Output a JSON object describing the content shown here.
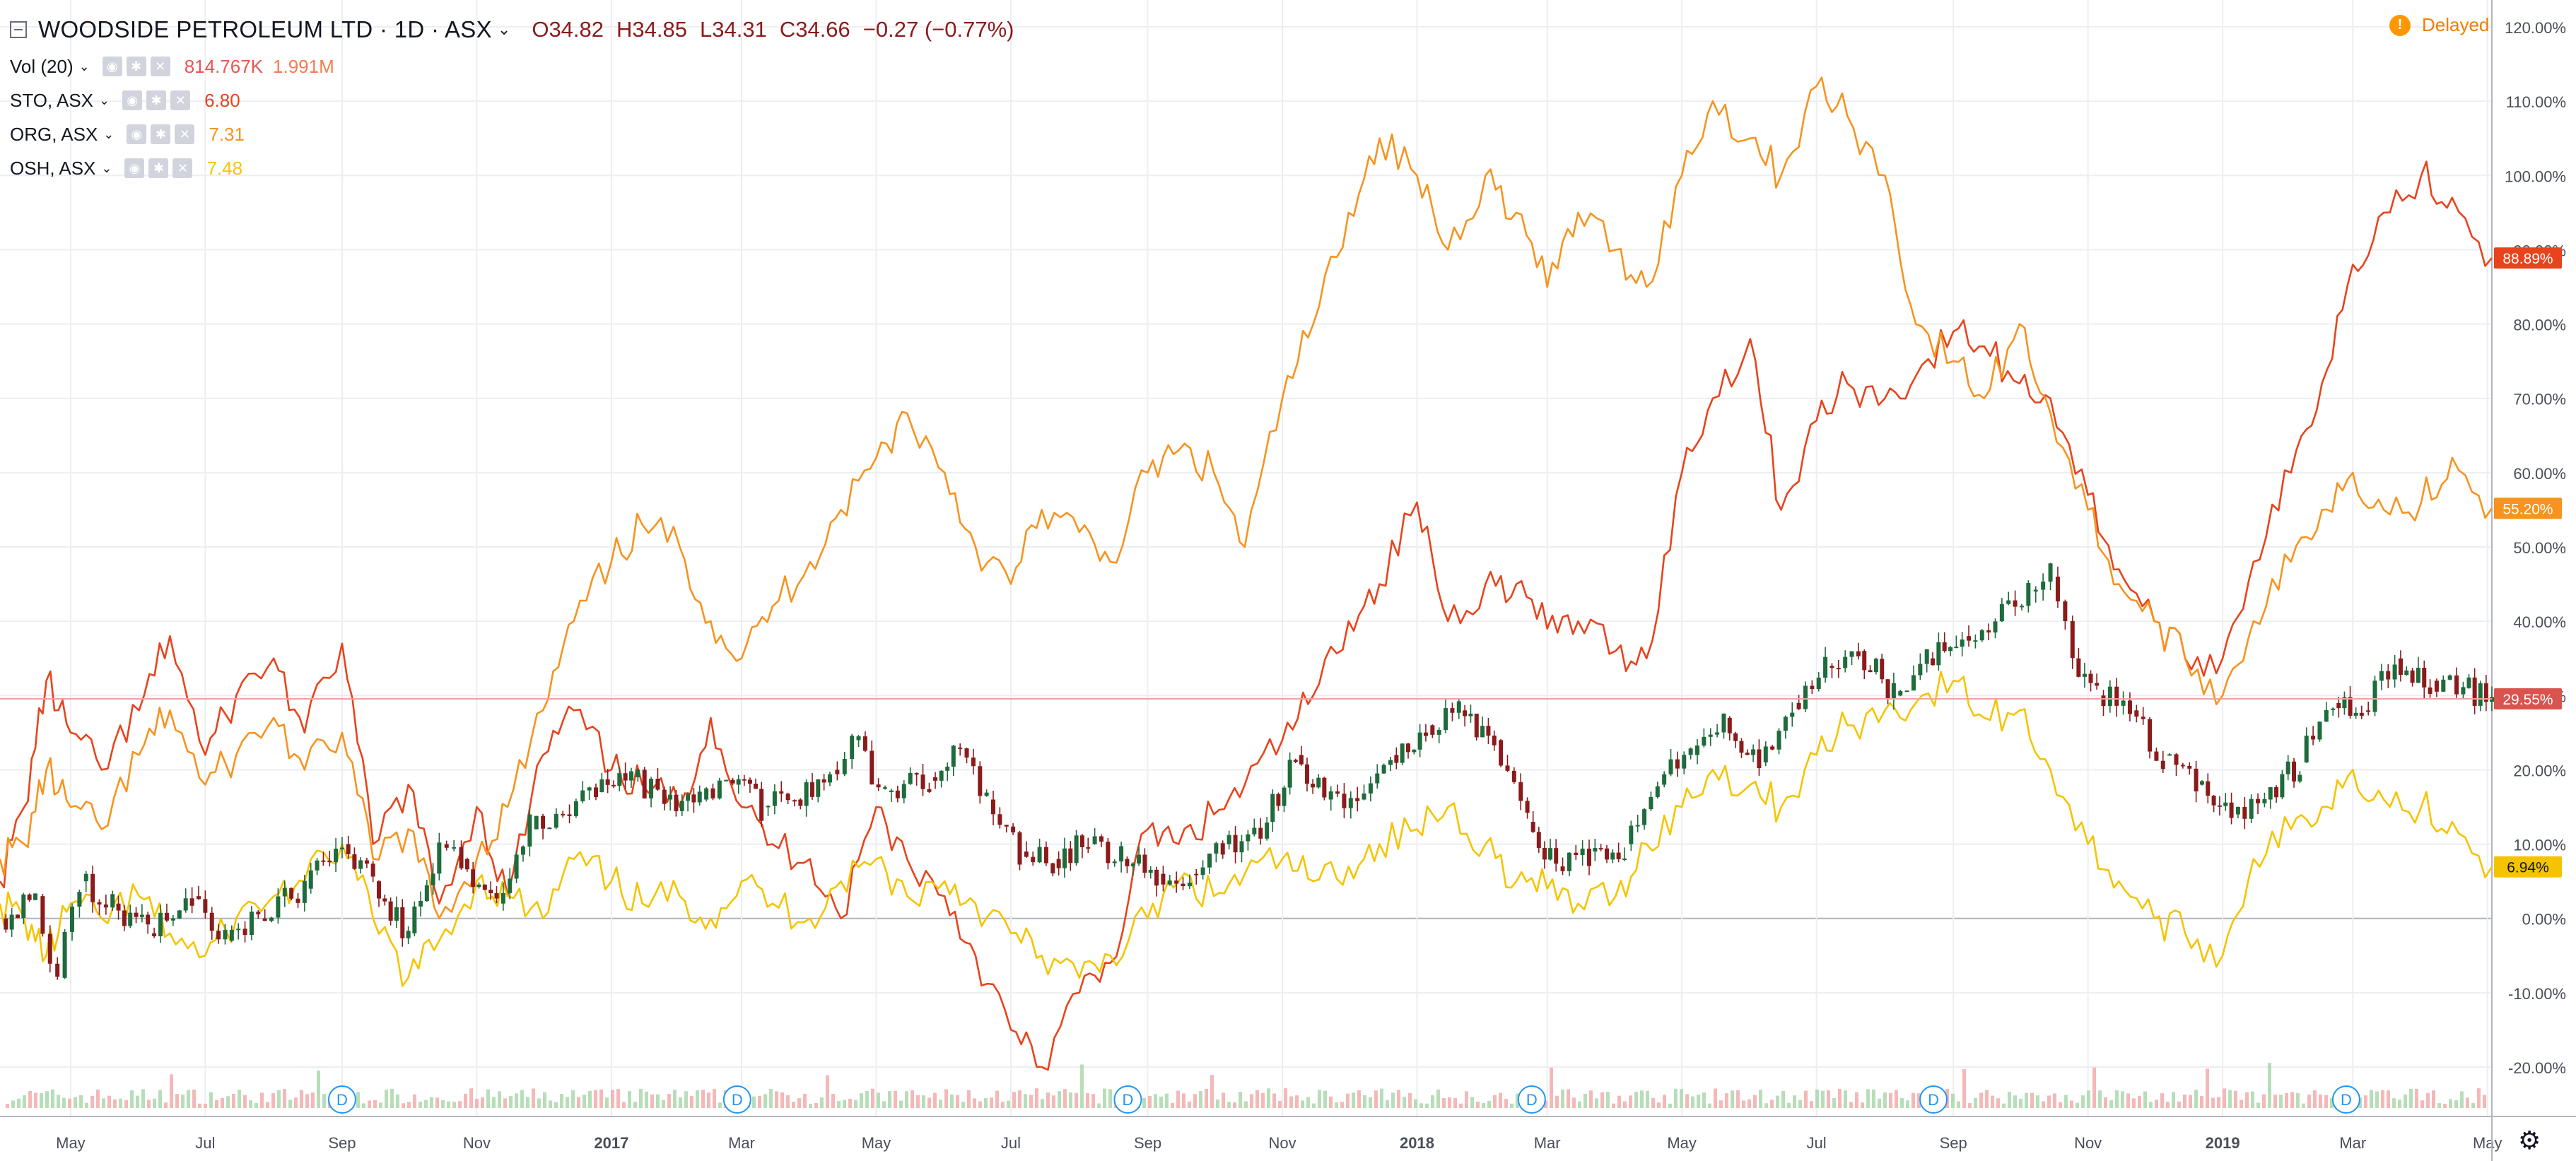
{
  "header": {
    "symbol": "WOODSIDE PETROLEUM LTD · 1D · ASX",
    "open": "O34.82",
    "high": "H34.85",
    "low": "L34.31",
    "close": "C34.66",
    "change": "−0.27 (−0.77%)",
    "delayed_label": "Delayed"
  },
  "indicators": [
    {
      "name": "Vol (20)",
      "value": "814.767K",
      "value2": "1.991M",
      "color": "#ef5350",
      "color2": "#f57c50"
    },
    {
      "name": "STO, ASX",
      "value": "6.80",
      "color": "#e8431c"
    },
    {
      "name": "ORG, ASX",
      "value": "7.31",
      "color": "#f7931e"
    },
    {
      "name": "OSH, ASX",
      "value": "7.48",
      "color": "#f5c400"
    }
  ],
  "colors": {
    "grid": "#eceef2",
    "axis_text": "#4a4e59",
    "candle_up": "#1e6b3c",
    "candle_down": "#8b1b1b",
    "vol_up": "#a5d6a7",
    "vol_down": "#f3a6a6"
  },
  "icons": [
    "collapse-icon",
    "eye-icon",
    "gear-icon",
    "close-icon",
    "settings-gear-icon",
    "dividend-icon"
  ],
  "chart_data": {
    "type": "line",
    "title": "WOODSIDE PETROLEUM LTD · 1D · ASX",
    "y_scale": "percent",
    "ylim": [
      -25,
      122
    ],
    "y_ticks": [
      "120.00%",
      "110.00%",
      "100.00%",
      "90.00%",
      "80.00%",
      "70.00%",
      "60.00%",
      "50.00%",
      "40.00%",
      "30.00%",
      "20.00%",
      "10.00%",
      "0.00%",
      "-10.00%",
      "-20.00%"
    ],
    "y_tick_values": [
      120,
      110,
      100,
      90,
      80,
      70,
      60,
      50,
      40,
      30,
      20,
      10,
      0,
      -10,
      -20
    ],
    "x_range": [
      "2016-03-30",
      "2019-05-03"
    ],
    "x_ticks": [
      {
        "label": "May",
        "date": "2016-05-01"
      },
      {
        "label": "Jul",
        "date": "2016-07-01"
      },
      {
        "label": "Sep",
        "date": "2016-09-01"
      },
      {
        "label": "Nov",
        "date": "2016-11-01"
      },
      {
        "label": "2017",
        "date": "2017-01-01",
        "bold": true
      },
      {
        "label": "Mar",
        "date": "2017-03-01"
      },
      {
        "label": "May",
        "date": "2017-05-01"
      },
      {
        "label": "Jul",
        "date": "2017-07-01"
      },
      {
        "label": "Sep",
        "date": "2017-09-01"
      },
      {
        "label": "Nov",
        "date": "2017-11-01"
      },
      {
        "label": "2018",
        "date": "2018-01-01",
        "bold": true
      },
      {
        "label": "Mar",
        "date": "2018-03-01"
      },
      {
        "label": "May",
        "date": "2018-05-01"
      },
      {
        "label": "Jul",
        "date": "2018-07-01"
      },
      {
        "label": "Sep",
        "date": "2018-09-01"
      },
      {
        "label": "Nov",
        "date": "2018-11-01"
      },
      {
        "label": "2019",
        "date": "2019-01-01",
        "bold": true
      },
      {
        "label": "Mar",
        "date": "2019-03-01"
      },
      {
        "label": "May",
        "date": "2019-05-01"
      }
    ],
    "last_value_labels": [
      {
        "series": "STO, ASX",
        "text": "88.89%",
        "value": 88.89,
        "color": "#e8431c"
      },
      {
        "series": "ORG, ASX",
        "text": "55.20%",
        "value": 55.2,
        "color": "#f7931e"
      },
      {
        "series": "WOODSIDE PETROLEUM LTD",
        "text": "29.55%",
        "value": 29.55,
        "color": "#d9534f"
      },
      {
        "series": "OSH, ASX",
        "text": "6.94%",
        "value": 6.94,
        "color": "#f5c400"
      }
    ],
    "dividend_markers": [
      {
        "label": "D",
        "date": "2016-09-01"
      },
      {
        "label": "D",
        "date": "2017-02-27"
      },
      {
        "label": "D",
        "date": "2017-08-23"
      },
      {
        "label": "D",
        "date": "2018-02-22"
      },
      {
        "label": "D",
        "date": "2018-08-23"
      },
      {
        "label": "D",
        "date": "2019-02-26"
      }
    ],
    "series": [
      {
        "name": "WOODSIDE PETROLEUM LTD",
        "kind": "candles",
        "x": [
          "2016-03-30",
          "2016-04-15",
          "2016-04-25",
          "2016-05-05",
          "2016-05-20",
          "2016-06-05",
          "2016-06-25",
          "2016-07-10",
          "2016-07-25",
          "2016-08-15",
          "2016-09-01",
          "2016-09-15",
          "2016-10-01",
          "2016-10-15",
          "2016-10-25",
          "2016-11-10",
          "2016-11-25",
          "2016-12-10",
          "2016-12-25",
          "2017-01-10",
          "2017-01-25",
          "2017-02-10",
          "2017-02-25",
          "2017-03-10",
          "2017-03-25",
          "2017-04-10",
          "2017-04-20",
          "2017-05-05",
          "2017-05-25",
          "2017-06-05",
          "2017-06-20",
          "2017-07-05",
          "2017-07-20",
          "2017-08-05",
          "2017-08-20",
          "2017-09-05",
          "2017-09-20",
          "2017-10-05",
          "2017-10-25",
          "2017-11-07",
          "2017-11-20",
          "2017-12-05",
          "2017-12-20",
          "2018-01-05",
          "2018-01-20",
          "2018-02-05",
          "2018-02-20",
          "2018-03-05",
          "2018-03-20",
          "2018-04-05",
          "2018-04-20",
          "2018-05-05",
          "2018-05-20",
          "2018-06-05",
          "2018-06-20",
          "2018-07-05",
          "2018-07-20",
          "2018-08-05",
          "2018-08-20",
          "2018-09-05",
          "2018-09-20",
          "2018-10-05",
          "2018-10-15",
          "2018-10-25",
          "2018-11-05",
          "2018-11-20",
          "2018-12-05",
          "2018-12-20",
          "2019-01-05",
          "2019-01-20",
          "2019-02-05",
          "2019-02-20",
          "2019-03-05",
          "2019-03-20",
          "2019-04-05",
          "2019-04-20",
          "2019-05-03"
        ],
        "values": [
          0,
          3,
          -8,
          5,
          2,
          -2,
          3,
          -3,
          0,
          4,
          10,
          5,
          -2,
          10,
          8,
          2,
          12,
          14,
          17,
          19,
          16,
          16,
          18,
          15,
          16,
          20,
          24,
          17,
          19,
          23,
          16,
          9,
          8,
          10,
          8,
          6,
          6,
          10,
          13,
          22,
          16,
          16,
          22,
          26,
          28,
          24,
          13,
          7,
          9,
          10,
          18,
          22,
          27,
          21,
          29,
          34,
          36,
          30,
          35,
          38,
          40,
          44,
          46,
          35,
          30,
          28,
          22,
          18,
          14,
          16,
          21,
          29,
          28,
          35,
          32,
          31,
          29.55
        ]
      },
      {
        "name": "STO, ASX",
        "kind": "line",
        "color": "#e8431c",
        "x": [
          "2016-03-30",
          "2016-04-10",
          "2016-04-20",
          "2016-05-01",
          "2016-05-15",
          "2016-06-01",
          "2016-06-15",
          "2016-07-01",
          "2016-07-15",
          "2016-08-01",
          "2016-08-15",
          "2016-09-01",
          "2016-09-15",
          "2016-10-01",
          "2016-10-15",
          "2016-11-01",
          "2016-11-15",
          "2016-12-01",
          "2016-12-15",
          "2017-01-01",
          "2017-01-15",
          "2017-02-01",
          "2017-02-15",
          "2017-03-01",
          "2017-03-15",
          "2017-04-01",
          "2017-04-15",
          "2017-05-01",
          "2017-05-15",
          "2017-06-01",
          "2017-06-15",
          "2017-07-01",
          "2017-07-15",
          "2017-08-01",
          "2017-08-15",
          "2017-09-01",
          "2017-09-15",
          "2017-10-01",
          "2017-10-15",
          "2017-11-01",
          "2017-11-15",
          "2017-12-01",
          "2017-12-15",
          "2018-01-01",
          "2018-01-15",
          "2018-02-01",
          "2018-02-15",
          "2018-03-01",
          "2018-03-15",
          "2018-04-01",
          "2018-04-15",
          "2018-05-01",
          "2018-05-15",
          "2018-06-01",
          "2018-06-15",
          "2018-07-01",
          "2018-07-15",
          "2018-08-01",
          "2018-08-15",
          "2018-09-01",
          "2018-09-15",
          "2018-10-01",
          "2018-10-15",
          "2018-11-01",
          "2018-11-15",
          "2018-12-01",
          "2018-12-15",
          "2019-01-01",
          "2019-01-15",
          "2019-02-01",
          "2019-02-15",
          "2019-03-01",
          "2019-03-15",
          "2019-04-01",
          "2019-04-15",
          "2019-05-03"
        ],
        "values": [
          5,
          15,
          32,
          25,
          20,
          28,
          38,
          22,
          30,
          35,
          25,
          37,
          10,
          18,
          2,
          15,
          3,
          22,
          28,
          20,
          18,
          15,
          27,
          15,
          10,
          8,
          0,
          15,
          8,
          3,
          -5,
          -15,
          -20,
          -10,
          -6,
          12,
          10,
          14,
          18,
          24,
          30,
          40,
          45,
          56,
          40,
          45,
          45,
          39,
          40,
          36,
          35,
          60,
          70,
          78,
          55,
          67,
          72,
          70,
          73,
          79,
          77,
          72,
          70,
          57,
          47,
          40,
          35,
          35,
          48,
          60,
          72,
          88,
          95,
          100,
          97,
          88.89
        ]
      },
      {
        "name": "ORG, ASX",
        "kind": "line",
        "color": "#f7931e",
        "x": [
          "2016-03-30",
          "2016-04-10",
          "2016-04-20",
          "2016-05-01",
          "2016-05-15",
          "2016-06-01",
          "2016-06-15",
          "2016-07-01",
          "2016-07-15",
          "2016-08-01",
          "2016-08-15",
          "2016-09-01",
          "2016-09-15",
          "2016-10-01",
          "2016-10-15",
          "2016-11-01",
          "2016-11-15",
          "2016-12-01",
          "2016-12-15",
          "2017-01-01",
          "2017-01-15",
          "2017-02-01",
          "2017-02-15",
          "2017-03-01",
          "2017-03-15",
          "2017-04-01",
          "2017-04-15",
          "2017-05-01",
          "2017-05-15",
          "2017-06-01",
          "2017-06-15",
          "2017-07-01",
          "2017-07-15",
          "2017-08-01",
          "2017-08-15",
          "2017-09-01",
          "2017-09-15",
          "2017-10-01",
          "2017-10-15",
          "2017-11-01",
          "2017-11-15",
          "2017-12-01",
          "2017-12-15",
          "2018-01-01",
          "2018-01-15",
          "2018-02-01",
          "2018-02-15",
          "2018-03-01",
          "2018-03-15",
          "2018-04-01",
          "2018-04-15",
          "2018-05-01",
          "2018-05-15",
          "2018-06-01",
          "2018-06-15",
          "2018-07-01",
          "2018-07-15",
          "2018-08-01",
          "2018-08-15",
          "2018-09-01",
          "2018-09-15",
          "2018-10-01",
          "2018-10-15",
          "2018-11-01",
          "2018-11-15",
          "2018-12-01",
          "2018-12-15",
          "2019-01-01",
          "2019-01-15",
          "2019-02-01",
          "2019-02-15",
          "2019-03-01",
          "2019-03-15",
          "2019-04-01",
          "2019-04-15",
          "2019-05-03"
        ],
        "values": [
          8,
          10,
          20,
          15,
          12,
          22,
          28,
          18,
          22,
          27,
          20,
          25,
          8,
          12,
          0,
          8,
          15,
          28,
          40,
          48,
          53,
          50,
          40,
          35,
          42,
          48,
          55,
          62,
          68,
          60,
          50,
          45,
          55,
          52,
          48,
          60,
          63,
          60,
          50,
          70,
          80,
          95,
          105,
          100,
          90,
          100,
          95,
          85,
          95,
          90,
          85,
          100,
          110,
          105,
          100,
          112,
          108,
          100,
          80,
          75,
          70,
          80,
          68,
          55,
          45,
          40,
          35,
          30,
          40,
          48,
          55,
          60,
          55,
          56,
          62,
          55.2
        ]
      },
      {
        "name": "OSH, ASX",
        "kind": "line",
        "color": "#f5c400",
        "x": [
          "2016-03-30",
          "2016-04-10",
          "2016-04-20",
          "2016-05-01",
          "2016-05-15",
          "2016-06-01",
          "2016-06-15",
          "2016-07-01",
          "2016-07-15",
          "2016-08-01",
          "2016-08-15",
          "2016-09-01",
          "2016-09-15",
          "2016-10-01",
          "2016-10-15",
          "2016-11-01",
          "2016-11-15",
          "2016-12-01",
          "2016-12-15",
          "2017-01-01",
          "2017-01-15",
          "2017-02-01",
          "2017-02-15",
          "2017-03-01",
          "2017-03-15",
          "2017-04-01",
          "2017-04-15",
          "2017-05-01",
          "2017-05-15",
          "2017-06-01",
          "2017-06-15",
          "2017-07-01",
          "2017-07-15",
          "2017-08-01",
          "2017-08-15",
          "2017-09-01",
          "2017-09-15",
          "2017-10-01",
          "2017-10-15",
          "2017-11-01",
          "2017-11-15",
          "2017-12-01",
          "2017-12-15",
          "2018-01-01",
          "2018-01-15",
          "2018-02-01",
          "2018-02-15",
          "2018-03-01",
          "2018-03-15",
          "2018-04-01",
          "2018-04-15",
          "2018-05-01",
          "2018-05-15",
          "2018-06-01",
          "2018-06-15",
          "2018-07-01",
          "2018-07-15",
          "2018-08-01",
          "2018-08-15",
          "2018-09-01",
          "2018-09-15",
          "2018-10-01",
          "2018-10-15",
          "2018-11-01",
          "2018-11-15",
          "2018-12-01",
          "2018-12-15",
          "2019-01-01",
          "2019-01-15",
          "2019-02-01",
          "2019-02-15",
          "2019-03-01",
          "2019-03-15",
          "2019-04-01",
          "2019-04-15",
          "2019-05-03"
        ],
        "values": [
          2,
          0,
          -5,
          2,
          0,
          3,
          -2,
          -5,
          0,
          3,
          5,
          10,
          0,
          -8,
          -3,
          5,
          3,
          0,
          8,
          5,
          2,
          3,
          0,
          5,
          2,
          0,
          5,
          8,
          3,
          5,
          2,
          -2,
          -5,
          -8,
          -5,
          0,
          5,
          3,
          6,
          8,
          5,
          7,
          10,
          12,
          15,
          10,
          5,
          4,
          2,
          3,
          10,
          15,
          20,
          18,
          15,
          22,
          26,
          28,
          29,
          32,
          27,
          28,
          20,
          10,
          5,
          0,
          -2,
          -5,
          8,
          12,
          15,
          20,
          16,
          15,
          13,
          6.94
        ]
      }
    ]
  }
}
